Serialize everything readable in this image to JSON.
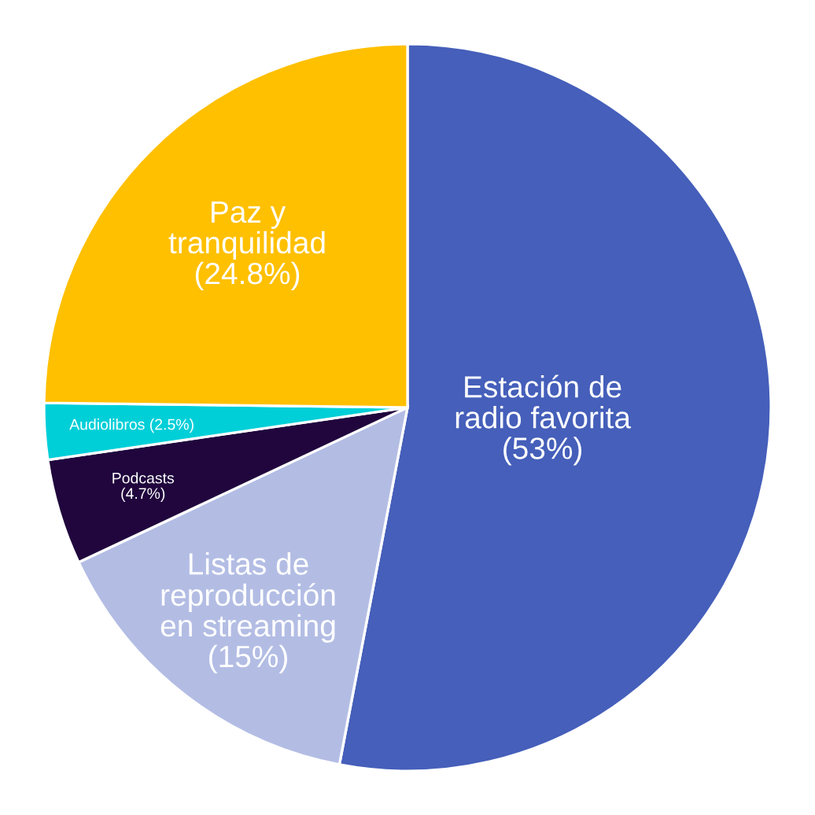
{
  "chart_data": {
    "type": "pie",
    "categories": [
      "Estación de\nradio favorita",
      "Listas de\nreproducción\nen streaming",
      "Podcasts",
      "Audiolibros",
      "Paz y\ntranquilidad"
    ],
    "values": [
      53,
      15,
      4.7,
      2.5,
      24.8
    ],
    "colors": [
      "#455fba",
      "#b3bde4",
      "#20063d",
      "#00cfd8",
      "#ffc000"
    ],
    "value_labels": [
      "(53%)",
      "(15%)",
      "(4.7%)",
      "(2.5%)",
      "(24.8%)"
    ]
  }
}
